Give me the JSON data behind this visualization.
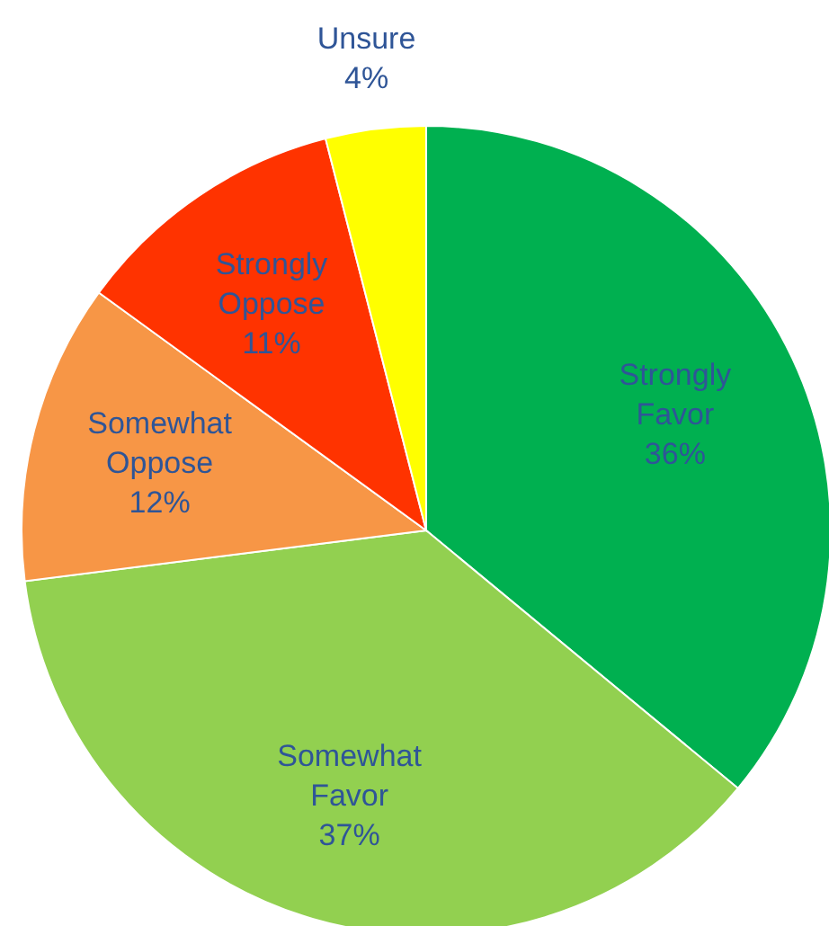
{
  "chart_data": {
    "type": "pie",
    "categories": [
      "Strongly Favor",
      "Somewhat Favor",
      "Somewhat Oppose",
      "Strongly Oppose",
      "Unsure"
    ],
    "values": [
      36,
      37,
      12,
      11,
      4
    ],
    "colors": [
      "#00b050",
      "#92d050",
      "#f79646",
      "#ff3300",
      "#ffff00"
    ],
    "value_labels": [
      "36%",
      "37%",
      "12%",
      "11%",
      "4%"
    ],
    "legend": false
  }
}
